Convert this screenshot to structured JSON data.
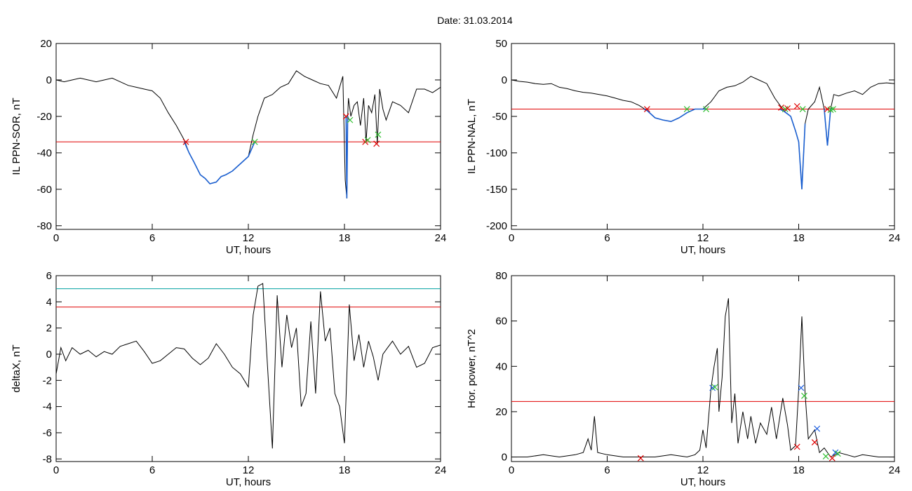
{
  "figure_title": "Date:  31.03.2014",
  "colors": {
    "line": "#000000",
    "highlight": "#1a5fd0",
    "threshold": "#e00000",
    "threshold2": "#00a0a0",
    "cross_red": "#e00000",
    "cross_green": "#30c030",
    "cross_blue": "#2060e0"
  },
  "chart_data": [
    {
      "id": "p1",
      "type": "line",
      "xlabel": "UT, hours",
      "ylabel": "IL PPN-SOR, nT",
      "xlim": [
        0,
        24
      ],
      "ylim": [
        -82,
        20
      ],
      "xticks": [
        0,
        6,
        12,
        18,
        24
      ],
      "yticks": [
        20,
        0,
        -20,
        -40,
        -60,
        -80
      ],
      "thresholds": [
        {
          "y": -34,
          "color": "red"
        }
      ],
      "series": [
        {
          "role": "main",
          "x": [
            0,
            0.5,
            1,
            1.5,
            2,
            2.5,
            3,
            3.5,
            4,
            4.5,
            5,
            5.5,
            6,
            6.5,
            7,
            7.5,
            8,
            8.3,
            8.6,
            9,
            9.3,
            9.6,
            10,
            10.3,
            10.6,
            11,
            11.5,
            12,
            12.3,
            12.6,
            13,
            13.5,
            14,
            14.5,
            15,
            15.5,
            16,
            16.5,
            17,
            17.5,
            17.9,
            18.05,
            18.15,
            18.2,
            18.25,
            18.4,
            18.6,
            18.8,
            19,
            19.2,
            19.35,
            19.5,
            19.7,
            19.9,
            20.05,
            20.2,
            20.4,
            20.6,
            21,
            21.5,
            22,
            22.5,
            23,
            23.5,
            24
          ],
          "y": [
            0,
            -1,
            0,
            1,
            0,
            -1,
            0,
            1,
            -1,
            -3,
            -4,
            -5,
            -6,
            -10,
            -18,
            -25,
            -33,
            -40,
            -45,
            -52,
            -54,
            -57,
            -56,
            -53,
            -52,
            -50,
            -46,
            -42,
            -30,
            -20,
            -10,
            -8,
            -4,
            -2,
            5,
            2,
            0,
            -2,
            -3,
            -10,
            2,
            -55,
            -65,
            -20,
            -10,
            -20,
            -14,
            -12,
            -25,
            -10,
            -34,
            -14,
            -18,
            -8,
            -35,
            -5,
            -16,
            -22,
            -12,
            -14,
            -18,
            -5,
            -5,
            -7,
            -4
          ]
        },
        {
          "role": "highlight",
          "x": [
            8,
            8.3,
            8.6,
            9,
            9.3,
            9.6,
            10,
            10.3,
            10.6,
            11,
            11.5,
            12,
            12.4
          ],
          "y": [
            -34,
            -40,
            -45,
            -52,
            -54,
            -57,
            -56,
            -53,
            -52,
            -50,
            -46,
            -42,
            -34
          ]
        },
        {
          "role": "highlight",
          "x": [
            18.1,
            18.15,
            18.2,
            18.3
          ],
          "y": [
            -20,
            -65,
            -20,
            -22
          ]
        }
      ],
      "markers": [
        {
          "x": 8.1,
          "y": -34,
          "color": "red"
        },
        {
          "x": 12.4,
          "y": -34,
          "color": "green"
        },
        {
          "x": 18.1,
          "y": -20,
          "color": "red"
        },
        {
          "x": 18.35,
          "y": -22,
          "color": "green"
        },
        {
          "x": 19.3,
          "y": -34,
          "color": "red"
        },
        {
          "x": 19.45,
          "y": -33,
          "color": "green"
        },
        {
          "x": 20.0,
          "y": -35,
          "color": "red"
        },
        {
          "x": 20.1,
          "y": -30,
          "color": "green"
        }
      ]
    },
    {
      "id": "p2",
      "type": "line",
      "xlabel": "UT, hours",
      "ylabel": "IL PPN-NAL, nT",
      "xlim": [
        0,
        24
      ],
      "ylim": [
        -205,
        50
      ],
      "xticks": [
        0,
        6,
        12,
        18,
        24
      ],
      "yticks": [
        50,
        0,
        -50,
        -100,
        -150,
        -200
      ],
      "thresholds": [
        {
          "y": -40,
          "color": "red"
        }
      ],
      "series": [
        {
          "role": "main",
          "x": [
            0,
            0.5,
            1,
            1.5,
            2,
            2.5,
            3,
            3.5,
            4,
            4.5,
            5,
            5.5,
            6,
            6.5,
            7,
            7.5,
            8,
            8.5,
            9,
            9.5,
            10,
            10.5,
            11,
            11.5,
            12,
            12.5,
            13,
            13.5,
            14,
            14.5,
            15,
            15.5,
            16,
            16.5,
            17,
            17.2,
            17.5,
            17.8,
            18,
            18.2,
            18.4,
            18.6,
            19,
            19.3,
            19.6,
            19.8,
            20,
            20.2,
            20.5,
            21,
            21.5,
            22,
            22.5,
            23,
            23.5,
            24
          ],
          "y": [
            0,
            -2,
            -3,
            -5,
            -6,
            -5,
            -10,
            -12,
            -15,
            -17,
            -18,
            -20,
            -22,
            -25,
            -28,
            -30,
            -35,
            -42,
            -52,
            -55,
            -57,
            -52,
            -45,
            -40,
            -40,
            -30,
            -15,
            -10,
            -8,
            -3,
            5,
            0,
            -5,
            -25,
            -40,
            -45,
            -50,
            -70,
            -85,
            -150,
            -60,
            -40,
            -30,
            -10,
            -40,
            -90,
            -40,
            -20,
            -22,
            -18,
            -15,
            -20,
            -10,
            -5,
            -4,
            -5
          ]
        },
        {
          "role": "highlight",
          "x": [
            8.3,
            8.5,
            9,
            9.5,
            10,
            10.5,
            11,
            11.5,
            12,
            12.2
          ],
          "y": [
            -40,
            -42,
            -52,
            -55,
            -57,
            -52,
            -45,
            -40,
            -40,
            -40
          ]
        },
        {
          "role": "highlight",
          "x": [
            16.8,
            17,
            17.2,
            17.5,
            17.8,
            18,
            18.2,
            18.4
          ],
          "y": [
            -40,
            -42,
            -45,
            -50,
            -70,
            -85,
            -150,
            -60
          ]
        },
        {
          "role": "highlight",
          "x": [
            19.6,
            19.8,
            20,
            20.2
          ],
          "y": [
            -40,
            -90,
            -40,
            -40
          ]
        }
      ],
      "markers": [
        {
          "x": 8.5,
          "y": -40,
          "color": "red"
        },
        {
          "x": 11.0,
          "y": -40,
          "color": "green"
        },
        {
          "x": 12.2,
          "y": -40,
          "color": "green"
        },
        {
          "x": 16.9,
          "y": -38,
          "color": "red"
        },
        {
          "x": 17.15,
          "y": -40,
          "color": "green"
        },
        {
          "x": 17.3,
          "y": -39,
          "color": "red"
        },
        {
          "x": 17.9,
          "y": -36,
          "color": "red"
        },
        {
          "x": 18.25,
          "y": -40,
          "color": "green"
        },
        {
          "x": 19.8,
          "y": -40,
          "color": "red"
        },
        {
          "x": 20.0,
          "y": -41,
          "color": "green"
        },
        {
          "x": 20.15,
          "y": -40,
          "color": "green"
        }
      ]
    },
    {
      "id": "p3",
      "type": "line",
      "xlabel": "UT, hours",
      "ylabel": "deltaX, nT",
      "xlim": [
        0,
        24
      ],
      "ylim": [
        -8.2,
        6
      ],
      "xticks": [
        0,
        6,
        12,
        18,
        24
      ],
      "yticks": [
        6,
        4,
        2,
        0,
        -2,
        -4,
        -6,
        -8
      ],
      "thresholds": [
        {
          "y": 5.0,
          "color": "teal"
        },
        {
          "y": 3.6,
          "color": "red"
        }
      ],
      "series": [
        {
          "role": "main",
          "x": [
            0,
            0.3,
            0.6,
            1,
            1.5,
            2,
            2.5,
            3,
            3.5,
            4,
            4.5,
            5,
            5.5,
            6,
            6.5,
            7,
            7.5,
            8,
            8.5,
            9,
            9.5,
            10,
            10.5,
            11,
            11.5,
            12,
            12.3,
            12.6,
            12.9,
            13.2,
            13.5,
            13.8,
            14.1,
            14.4,
            14.7,
            15,
            15.3,
            15.6,
            15.9,
            16.2,
            16.5,
            16.8,
            17.1,
            17.4,
            17.7,
            18,
            18.3,
            18.6,
            18.9,
            19.2,
            19.5,
            19.8,
            20.1,
            20.4,
            20.7,
            21,
            21.5,
            22,
            22.5,
            23,
            23.5,
            24
          ],
          "y": [
            -1.5,
            0.5,
            -0.5,
            0.5,
            0,
            0.3,
            -0.2,
            0.2,
            0,
            0.6,
            0.8,
            1,
            0.2,
            -0.7,
            -0.5,
            0,
            0.5,
            0.4,
            -0.3,
            -0.8,
            -0.3,
            0.8,
            0,
            -1,
            -1.5,
            -2.5,
            3,
            5.2,
            5.4,
            -1,
            -7.2,
            4.5,
            -1,
            3,
            0.5,
            2,
            -4,
            -3,
            2.5,
            -3,
            4.8,
            1,
            2,
            -3,
            -4,
            -6.8,
            3.8,
            -0.5,
            1.5,
            -1,
            1,
            -0.2,
            -2,
            0,
            0.5,
            1,
            0,
            0.6,
            -1,
            -0.7,
            0.5,
            0.7
          ]
        }
      ],
      "markers": []
    },
    {
      "id": "p4",
      "type": "line",
      "xlabel": "UT, hours",
      "ylabel": "Hor. power, nT^2",
      "xlim": [
        0,
        24
      ],
      "ylim": [
        -2,
        80
      ],
      "xticks": [
        0,
        6,
        12,
        18,
        24
      ],
      "yticks": [
        80,
        60,
        40,
        20,
        0
      ],
      "thresholds": [
        {
          "y": 24.5,
          "color": "red"
        }
      ],
      "series": [
        {
          "role": "main",
          "x": [
            0,
            1,
            2,
            3,
            4,
            4.5,
            4.8,
            5,
            5.2,
            5.4,
            6,
            7,
            8,
            9,
            10,
            11,
            11.5,
            11.8,
            12,
            12.2,
            12.5,
            12.7,
            12.9,
            13,
            13.2,
            13.4,
            13.6,
            13.8,
            14,
            14.2,
            14.5,
            14.8,
            15,
            15.3,
            15.6,
            16,
            16.3,
            16.6,
            17,
            17.3,
            17.5,
            17.8,
            18,
            18.2,
            18.4,
            18.6,
            19,
            19.3,
            19.6,
            20,
            20.5,
            21,
            21.5,
            22,
            23,
            24
          ],
          "y": [
            0,
            0,
            1,
            0,
            1,
            2,
            8,
            3,
            18,
            2,
            1,
            0,
            0,
            0,
            1,
            0,
            1,
            3,
            12,
            4,
            30,
            40,
            48,
            20,
            35,
            62,
            70,
            15,
            28,
            6,
            20,
            8,
            18,
            6,
            15,
            10,
            22,
            8,
            26,
            14,
            3,
            5,
            30,
            62,
            28,
            8,
            12,
            2,
            4,
            0,
            2,
            1,
            0,
            1,
            0,
            0
          ]
        }
      ],
      "markers": [
        {
          "x": 8.1,
          "y": -0.5,
          "color": "red"
        },
        {
          "x": 12.6,
          "y": 30.5,
          "color": "blue"
        },
        {
          "x": 12.75,
          "y": 30.8,
          "color": "green"
        },
        {
          "x": 17.9,
          "y": 4.5,
          "color": "red"
        },
        {
          "x": 18.15,
          "y": 30.5,
          "color": "blue"
        },
        {
          "x": 18.35,
          "y": 27,
          "color": "green"
        },
        {
          "x": 19.0,
          "y": 6.5,
          "color": "red"
        },
        {
          "x": 19.15,
          "y": 12.5,
          "color": "blue"
        },
        {
          "x": 19.7,
          "y": 0.3,
          "color": "green"
        },
        {
          "x": 20.1,
          "y": -0.5,
          "color": "red"
        },
        {
          "x": 20.3,
          "y": 2,
          "color": "blue"
        },
        {
          "x": 20.45,
          "y": 1.5,
          "color": "green"
        }
      ]
    }
  ]
}
